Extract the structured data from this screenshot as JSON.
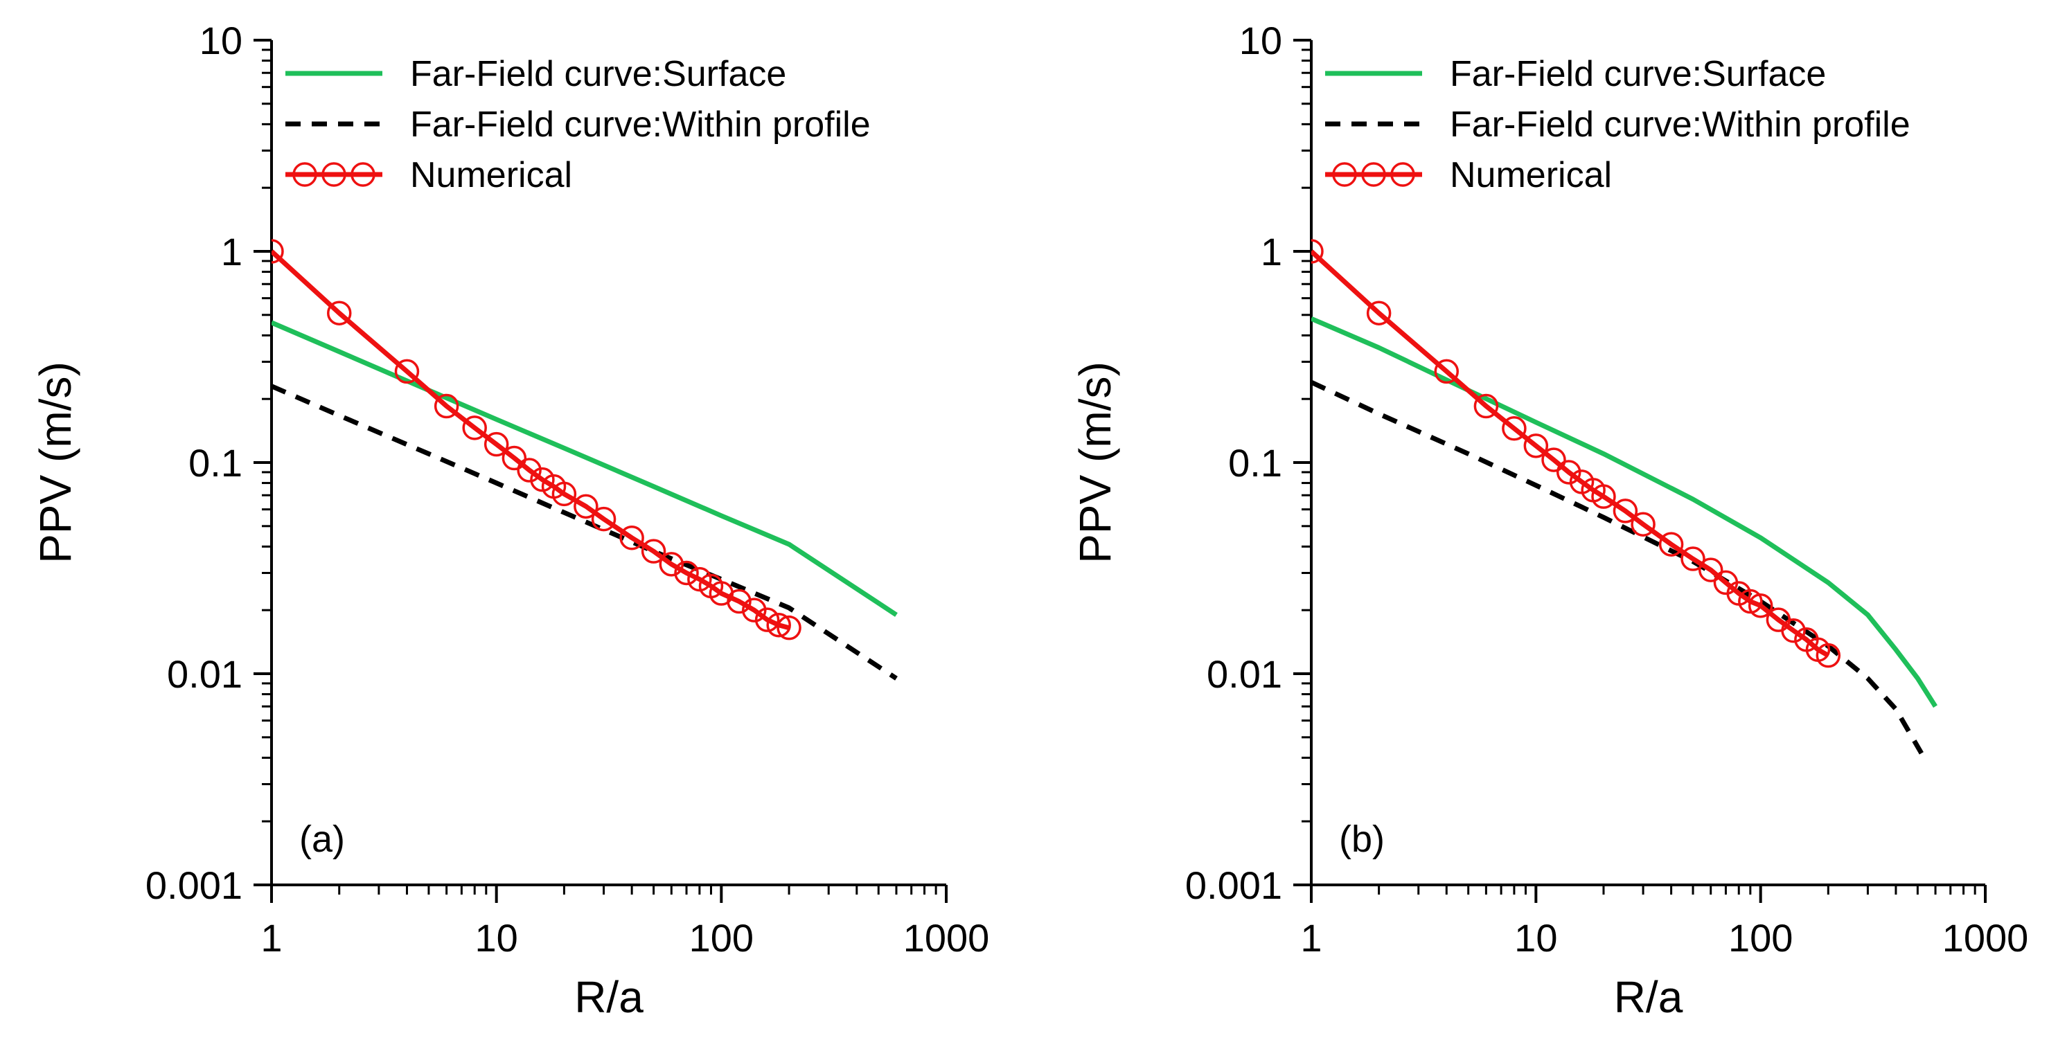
{
  "chart_data": [
    {
      "type": "line",
      "panel_label": "(a)",
      "xscale": "log",
      "yscale": "log",
      "xlim": [
        1,
        1000
      ],
      "ylim": [
        0.001,
        10
      ],
      "xlabel": "R/a",
      "ylabel": "PPV (m/s)",
      "xtick_labels": [
        "1",
        "10",
        "100",
        "1000"
      ],
      "ytick_labels": [
        "0.001",
        "0.01",
        "0.1",
        "1",
        "10"
      ],
      "legend_position": "top-left",
      "series": [
        {
          "name": "Far-Field curve:Surface",
          "style": "solid",
          "color": "#1fbf5a",
          "x": [
            1,
            2,
            5,
            10,
            20,
            50,
            100,
            200,
            600
          ],
          "y": [
            0.46,
            0.335,
            0.22,
            0.16,
            0.117,
            0.077,
            0.056,
            0.041,
            0.019
          ]
        },
        {
          "name": "Far-Field curve:Within profile",
          "style": "dashed",
          "color": "#000000",
          "x": [
            1,
            2,
            5,
            10,
            20,
            50,
            100,
            200,
            600
          ],
          "y": [
            0.23,
            0.167,
            0.11,
            0.08,
            0.058,
            0.038,
            0.028,
            0.0205,
            0.0095
          ]
        },
        {
          "name": "Numerical",
          "style": "solid-with-circles",
          "color": "#ee1111",
          "x": [
            1,
            2,
            4,
            6,
            8,
            10,
            12,
            14,
            16,
            18,
            20,
            25,
            30,
            40,
            50,
            60,
            70,
            80,
            90,
            100,
            120,
            140,
            160,
            180,
            200
          ],
          "y": [
            1.0,
            0.51,
            0.27,
            0.185,
            0.146,
            0.122,
            0.105,
            0.092,
            0.083,
            0.077,
            0.071,
            0.062,
            0.054,
            0.044,
            0.038,
            0.033,
            0.03,
            0.028,
            0.026,
            0.024,
            0.022,
            0.02,
            0.018,
            0.017,
            0.0165
          ]
        }
      ]
    },
    {
      "type": "line",
      "panel_label": "(b)",
      "xscale": "log",
      "yscale": "log",
      "xlim": [
        1,
        1000
      ],
      "ylim": [
        0.001,
        10
      ],
      "xlabel": "R/a",
      "ylabel": "PPV (m/s)",
      "xtick_labels": [
        "1",
        "10",
        "100",
        "1000"
      ],
      "ytick_labels": [
        "0.001",
        "0.01",
        "0.1",
        "1",
        "10"
      ],
      "legend_position": "top-left",
      "series": [
        {
          "name": "Far-Field curve:Surface",
          "style": "solid",
          "color": "#1fbf5a",
          "x": [
            1,
            2,
            5,
            10,
            20,
            50,
            100,
            200,
            300,
            400,
            500,
            600
          ],
          "y": [
            0.48,
            0.35,
            0.22,
            0.155,
            0.11,
            0.067,
            0.044,
            0.027,
            0.019,
            0.013,
            0.0095,
            0.007
          ]
        },
        {
          "name": "Far-Field curve:Within profile",
          "style": "dashed",
          "color": "#000000",
          "x": [
            1,
            2,
            5,
            10,
            20,
            50,
            100,
            200,
            300,
            400,
            520
          ],
          "y": [
            0.24,
            0.17,
            0.11,
            0.078,
            0.055,
            0.034,
            0.022,
            0.0135,
            0.0095,
            0.0068,
            0.0042
          ]
        },
        {
          "name": "Numerical",
          "style": "solid-with-circles",
          "color": "#ee1111",
          "x": [
            1,
            2,
            4,
            6,
            8,
            10,
            12,
            14,
            16,
            18,
            20,
            25,
            30,
            40,
            50,
            60,
            70,
            80,
            90,
            100,
            120,
            140,
            160,
            180,
            200
          ],
          "y": [
            1.0,
            0.51,
            0.27,
            0.185,
            0.145,
            0.12,
            0.103,
            0.09,
            0.081,
            0.074,
            0.069,
            0.059,
            0.051,
            0.041,
            0.035,
            0.031,
            0.027,
            0.024,
            0.022,
            0.021,
            0.018,
            0.016,
            0.0145,
            0.013,
            0.0122
          ]
        }
      ]
    }
  ]
}
